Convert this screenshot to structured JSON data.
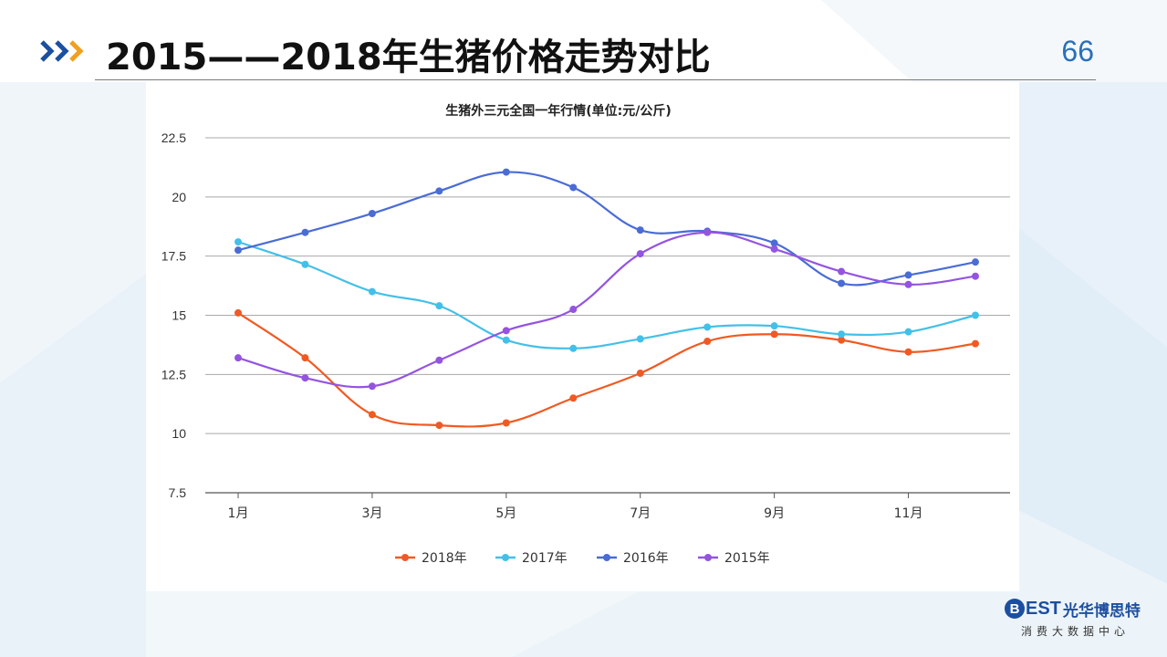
{
  "header": {
    "title": "2015——2018年生猪价格走势对比",
    "page_number": "66"
  },
  "logo": {
    "mark": "B",
    "brand": "EST",
    "brand_cn": "光华博思特",
    "subtitle": "消费大数据中心"
  },
  "colors": {
    "accent_blue": "#2a6fb8",
    "chevron_orange": "#f0a020",
    "2018": "#f05a22",
    "2017": "#43c0e8",
    "2016": "#4a6cd4",
    "2015": "#9454e0"
  },
  "chart_data": {
    "type": "line",
    "title": "生猪外三元全国一年行情(单位:元/公斤)",
    "xlabel": "",
    "ylabel": "",
    "x": [
      1,
      2,
      3,
      4,
      5,
      6,
      7,
      8,
      9,
      10,
      11,
      12
    ],
    "xtick_labels": [
      "1月",
      "3月",
      "5月",
      "7月",
      "9月",
      "11月"
    ],
    "xtick_positions": [
      1,
      3,
      5,
      7,
      9,
      11
    ],
    "ylim": [
      7.5,
      22.5
    ],
    "yticks": [
      7.5,
      10,
      12.5,
      15,
      17.5,
      20,
      22.5
    ],
    "ytick_labels": [
      "7.5",
      "10",
      "12.5",
      "15",
      "17.5",
      "20",
      "22.5"
    ],
    "grid": true,
    "smooth": true,
    "legend_position": "bottom",
    "series": [
      {
        "name": "2018年",
        "color": "#f05a22",
        "values": [
          15.1,
          13.2,
          10.8,
          10.35,
          10.45,
          11.5,
          12.55,
          13.9,
          14.2,
          13.95,
          13.45,
          13.8
        ]
      },
      {
        "name": "2017年",
        "color": "#43c0e8",
        "values": [
          18.1,
          17.15,
          16.0,
          15.4,
          13.95,
          13.6,
          14.0,
          14.5,
          14.55,
          14.2,
          14.3,
          15.0
        ]
      },
      {
        "name": "2016年",
        "color": "#4a6cd4",
        "values": [
          17.75,
          18.5,
          19.3,
          20.25,
          21.05,
          20.4,
          18.6,
          18.55,
          18.05,
          16.35,
          16.7,
          17.25
        ]
      },
      {
        "name": "2015年",
        "color": "#9454e0",
        "values": [
          13.2,
          12.35,
          12.0,
          13.1,
          14.35,
          15.25,
          17.6,
          18.5,
          17.8,
          16.85,
          16.3,
          16.65
        ]
      }
    ]
  }
}
